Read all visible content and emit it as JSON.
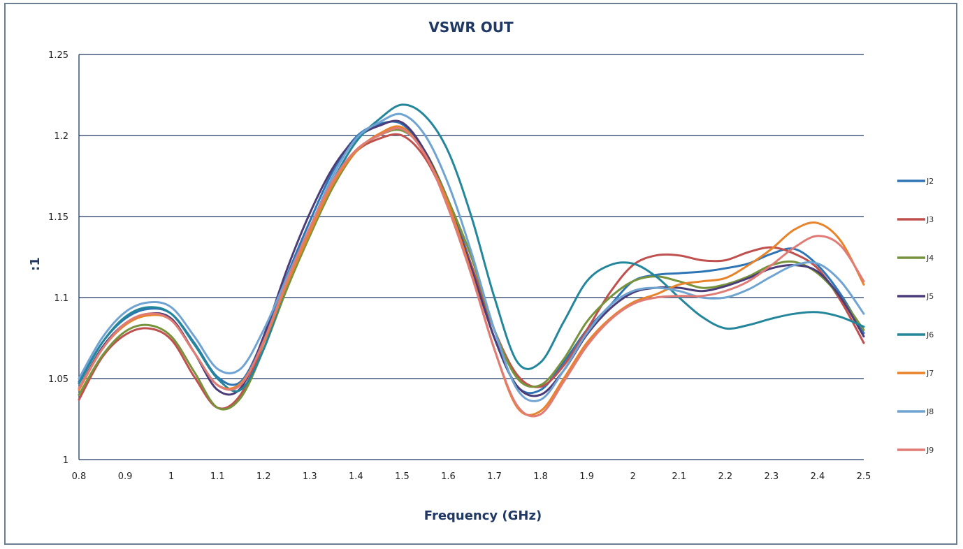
{
  "chart_data": {
    "type": "line",
    "title": "VSWR OUT",
    "xlabel": "Frequency (GHz)",
    "ylabel": ":1",
    "xlim": [
      0.8,
      2.5
    ],
    "ylim": [
      1,
      1.25
    ],
    "xticks": [
      "0.8",
      "0.9",
      "1",
      "1.1",
      "1.2",
      "1.3",
      "1.4",
      "1.5",
      "1.6",
      "1.7",
      "1.8",
      "1.9",
      "2",
      "2.1",
      "2.2",
      "2.3",
      "2.4",
      "2.5"
    ],
    "yticks": [
      "1",
      "1.05",
      "1.1",
      "1.15",
      "1.2",
      "1.25"
    ],
    "grid": "horizontal",
    "legend": "right",
    "x": [
      0.8,
      0.85,
      0.9,
      0.95,
      1.0,
      1.05,
      1.1,
      1.15,
      1.2,
      1.25,
      1.3,
      1.35,
      1.4,
      1.45,
      1.5,
      1.55,
      1.6,
      1.65,
      1.7,
      1.75,
      1.8,
      1.85,
      1.9,
      1.95,
      2.0,
      2.05,
      2.1,
      2.15,
      2.2,
      2.25,
      2.3,
      2.35,
      2.4,
      2.45,
      2.5
    ],
    "series": [
      {
        "name": "J2",
        "color": "#2e75b6",
        "values": [
          1.048,
          1.072,
          1.087,
          1.093,
          1.09,
          1.072,
          1.051,
          1.048,
          1.075,
          1.113,
          1.147,
          1.178,
          1.199,
          1.207,
          1.207,
          1.19,
          1.16,
          1.12,
          1.075,
          1.045,
          1.043,
          1.06,
          1.08,
          1.095,
          1.11,
          1.114,
          1.115,
          1.116,
          1.118,
          1.121,
          1.127,
          1.13,
          1.12,
          1.102,
          1.078
        ]
      },
      {
        "name": "J3",
        "color": "#c0504d",
        "values": [
          1.037,
          1.063,
          1.077,
          1.081,
          1.074,
          1.051,
          1.032,
          1.04,
          1.072,
          1.11,
          1.143,
          1.171,
          1.19,
          1.198,
          1.2,
          1.186,
          1.157,
          1.12,
          1.08,
          1.052,
          1.045,
          1.058,
          1.08,
          1.103,
          1.12,
          1.126,
          1.126,
          1.123,
          1.123,
          1.128,
          1.131,
          1.127,
          1.118,
          1.098,
          1.072
        ]
      },
      {
        "name": "J4",
        "color": "#77933c",
        "values": [
          1.04,
          1.064,
          1.079,
          1.083,
          1.076,
          1.054,
          1.032,
          1.038,
          1.068,
          1.105,
          1.138,
          1.168,
          1.19,
          1.2,
          1.203,
          1.19,
          1.16,
          1.125,
          1.08,
          1.05,
          1.046,
          1.062,
          1.085,
          1.1,
          1.11,
          1.113,
          1.11,
          1.106,
          1.108,
          1.113,
          1.12,
          1.122,
          1.115,
          1.1,
          1.08
        ]
      },
      {
        "name": "J5",
        "color": "#4b3c7a",
        "values": [
          1.044,
          1.069,
          1.084,
          1.09,
          1.087,
          1.066,
          1.043,
          1.044,
          1.076,
          1.117,
          1.152,
          1.18,
          1.198,
          1.206,
          1.208,
          1.19,
          1.158,
          1.118,
          1.075,
          1.045,
          1.04,
          1.055,
          1.077,
          1.093,
          1.103,
          1.106,
          1.106,
          1.104,
          1.107,
          1.112,
          1.118,
          1.12,
          1.116,
          1.1,
          1.076
        ]
      },
      {
        "name": "J6",
        "color": "#23869b",
        "values": [
          1.047,
          1.072,
          1.088,
          1.094,
          1.09,
          1.071,
          1.05,
          1.043,
          1.068,
          1.108,
          1.142,
          1.172,
          1.196,
          1.21,
          1.219,
          1.212,
          1.19,
          1.15,
          1.1,
          1.06,
          1.06,
          1.085,
          1.11,
          1.12,
          1.121,
          1.113,
          1.1,
          1.088,
          1.081,
          1.083,
          1.087,
          1.09,
          1.091,
          1.088,
          1.082
        ]
      },
      {
        "name": "J7",
        "color": "#e8832a",
        "values": [
          1.043,
          1.068,
          1.083,
          1.089,
          1.086,
          1.066,
          1.046,
          1.047,
          1.072,
          1.108,
          1.14,
          1.17,
          1.19,
          1.201,
          1.205,
          1.188,
          1.158,
          1.115,
          1.068,
          1.032,
          1.03,
          1.05,
          1.072,
          1.087,
          1.097,
          1.102,
          1.108,
          1.11,
          1.112,
          1.12,
          1.13,
          1.142,
          1.146,
          1.135,
          1.108
        ]
      },
      {
        "name": "J8",
        "color": "#6fa3d2",
        "values": [
          1.05,
          1.075,
          1.091,
          1.097,
          1.094,
          1.076,
          1.056,
          1.056,
          1.08,
          1.112,
          1.143,
          1.175,
          1.198,
          1.208,
          1.213,
          1.2,
          1.17,
          1.128,
          1.08,
          1.043,
          1.037,
          1.055,
          1.078,
          1.095,
          1.104,
          1.106,
          1.104,
          1.1,
          1.1,
          1.105,
          1.113,
          1.12,
          1.121,
          1.11,
          1.09
        ]
      },
      {
        "name": "J9",
        "color": "#e07b76",
        "values": [
          1.044,
          1.068,
          1.084,
          1.09,
          1.086,
          1.066,
          1.046,
          1.046,
          1.073,
          1.11,
          1.143,
          1.172,
          1.191,
          1.2,
          1.204,
          1.188,
          1.155,
          1.114,
          1.068,
          1.033,
          1.028,
          1.048,
          1.07,
          1.086,
          1.096,
          1.1,
          1.101,
          1.101,
          1.104,
          1.11,
          1.12,
          1.131,
          1.138,
          1.132,
          1.11
        ]
      }
    ]
  }
}
